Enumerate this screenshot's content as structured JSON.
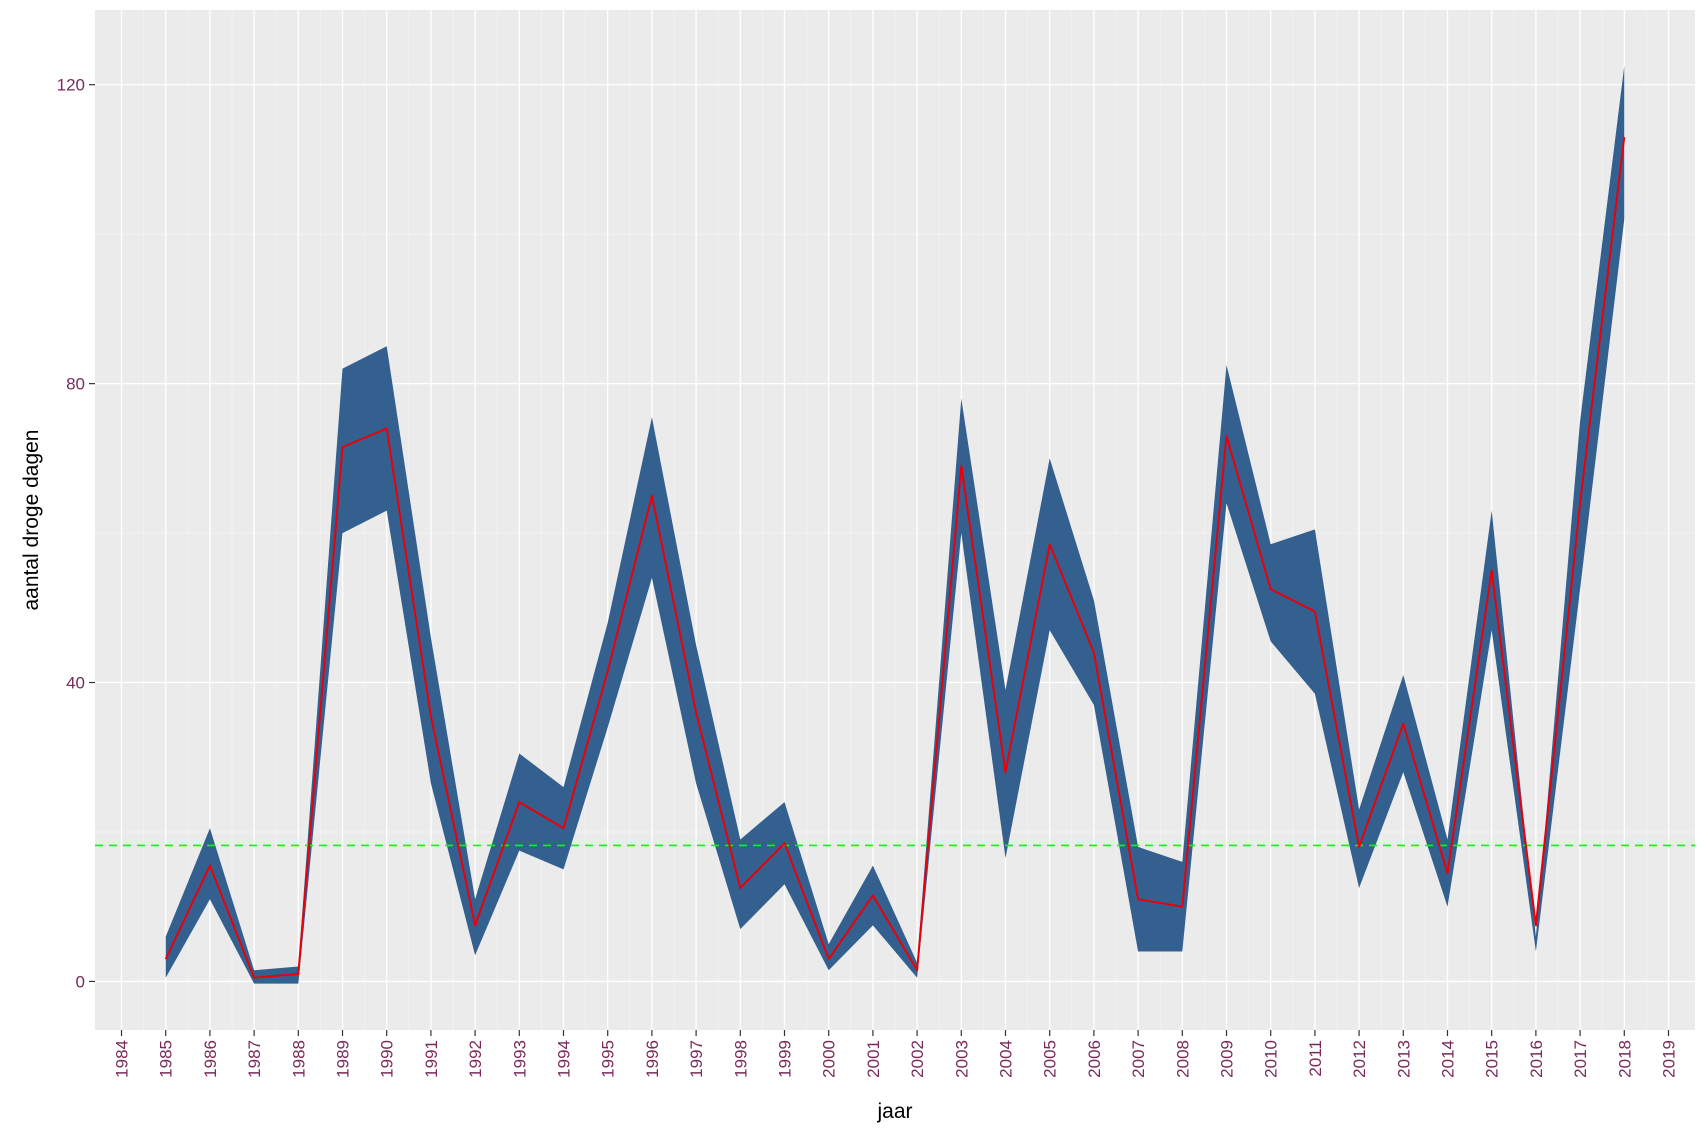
{
  "chart_data": {
    "type": "area",
    "title": "",
    "xlabel": "jaar",
    "ylabel": "aantal droge dagen",
    "xlim": [
      1983.4,
      2019.6
    ],
    "ylim": [
      -6.5,
      130
    ],
    "x_ticks": [
      "1984",
      "1985",
      "1986",
      "1987",
      "1988",
      "1989",
      "1990",
      "1991",
      "1992",
      "1993",
      "1994",
      "1995",
      "1996",
      "1997",
      "1998",
      "1999",
      "2000",
      "2001",
      "2002",
      "2003",
      "2004",
      "2005",
      "2006",
      "2007",
      "2008",
      "2009",
      "2010",
      "2011",
      "2012",
      "2013",
      "2014",
      "2015",
      "2016",
      "2017",
      "2018",
      "2019"
    ],
    "y_ticks": [
      0,
      40,
      80,
      120
    ],
    "grid": true,
    "colors": {
      "panel": "#ebebeb",
      "grid_major": "#ffffff",
      "band": "#33608f",
      "line": "#e8000b",
      "reference": "#00ff00",
      "tick_text": "#7a2a5a"
    },
    "years": [
      1985,
      1986,
      1987,
      1988,
      1989,
      1990,
      1991,
      1992,
      1993,
      1994,
      1995,
      1996,
      1997,
      1998,
      1999,
      2000,
      2001,
      2002,
      2003,
      2004,
      2005,
      2006,
      2007,
      2008,
      2009,
      2010,
      2011,
      2012,
      2013,
      2014,
      2015,
      2016,
      2017,
      2018
    ],
    "series": [
      {
        "name": "upper",
        "role": "band-upper",
        "values": [
          6,
          20.5,
          1.5,
          2,
          82,
          85,
          46,
          11,
          30.5,
          26,
          48,
          75.5,
          45,
          19,
          24,
          5,
          15.5,
          2.5,
          78,
          39,
          70,
          51,
          18,
          16,
          82.5,
          58.5,
          60.5,
          23,
          41,
          19,
          63,
          6,
          75,
          122.5
        ]
      },
      {
        "name": "lower",
        "role": "band-lower",
        "values": [
          0.5,
          11,
          -0.3,
          -0.3,
          60,
          63,
          26.5,
          3.5,
          17.5,
          15,
          34,
          54,
          26.5,
          7,
          13,
          1.5,
          7.5,
          0.5,
          60,
          16.5,
          47,
          37,
          4,
          4,
          64,
          45.5,
          38.5,
          12.5,
          28,
          10,
          47,
          4,
          52.5,
          102
        ]
      },
      {
        "name": "median",
        "role": "line",
        "values": [
          3,
          15.5,
          0.5,
          1,
          71.5,
          74,
          35.5,
          7.5,
          24,
          20.5,
          41.5,
          65,
          36,
          12.5,
          18.5,
          3,
          11.5,
          1.5,
          69,
          28,
          58.5,
          44,
          11,
          10,
          73,
          52.5,
          49.5,
          18,
          34.5,
          14.5,
          55,
          7.5,
          64,
          113
        ]
      }
    ],
    "reference_line": {
      "y": 18.2,
      "style": "dashed"
    }
  }
}
